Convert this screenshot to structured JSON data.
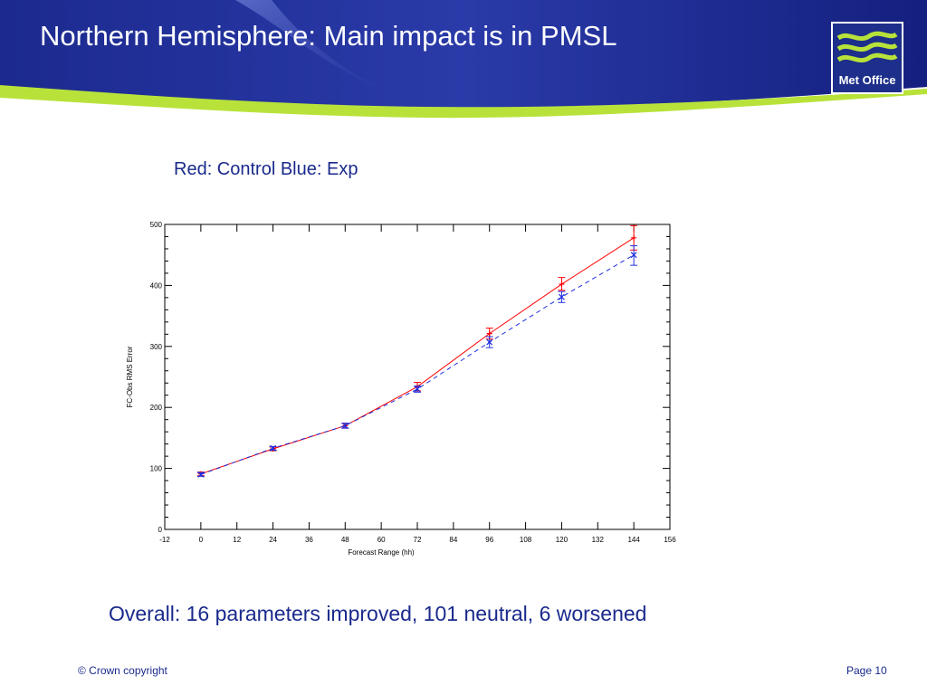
{
  "slide": {
    "title": "Northern Hemisphere: Main impact is in PMSL",
    "subtitle": "Red: Control Blue: Exp",
    "summary": "Overall: 16 parameters improved, 101 neutral, 6 worsened",
    "footer_left": "© Crown copyright",
    "footer_right": "Page 10",
    "logo_text": "Met Office"
  },
  "colors": {
    "header_blue": "#14207f",
    "accent_green": "#b8e23a",
    "control": "#ff0000",
    "exp": "#1f2fe0"
  },
  "chart_data": {
    "type": "line",
    "xlabel": "Forecast Range (hh)",
    "ylabel": "FC-Obs RMS Error",
    "xlim": [
      -12,
      156
    ],
    "ylim": [
      0,
      500
    ],
    "x_ticks": [
      "-12",
      "0",
      "12",
      "24",
      "36",
      "48",
      "60",
      "72",
      "84",
      "96",
      "108",
      "120",
      "132",
      "144",
      "156"
    ],
    "y_ticks": [
      "0",
      "100",
      "200",
      "300",
      "400",
      "500"
    ],
    "x": [
      0,
      24,
      48,
      72,
      96,
      120,
      144
    ],
    "series": [
      {
        "key": "control",
        "color": "#ff0000",
        "dash": "solid",
        "values": [
          91,
          132,
          170,
          234,
          321,
          402,
          478
        ],
        "err_low": [
          88,
          129,
          166,
          227,
          312,
          392,
          458
        ],
        "err_high": [
          94,
          135,
          174,
          241,
          330,
          413,
          498
        ]
      },
      {
        "key": "exp",
        "color": "#1f2fe0",
        "dash": "dashed",
        "values": [
          90,
          133,
          170,
          230,
          307,
          381,
          450
        ],
        "err_low": [
          87,
          130,
          166,
          225,
          298,
          372,
          433
        ],
        "err_high": [
          93,
          136,
          174,
          235,
          316,
          390,
          465
        ]
      }
    ]
  }
}
